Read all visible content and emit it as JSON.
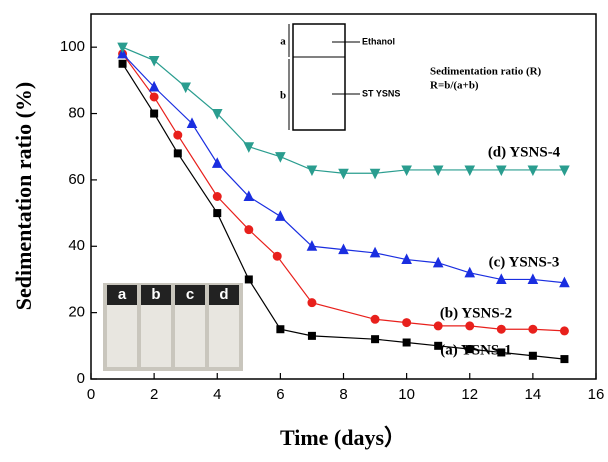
{
  "chart_data": {
    "type": "line",
    "x_label": "Time (days）",
    "y_label": "Sedimentation ratio (%)",
    "xlim": [
      0,
      16
    ],
    "xticks": [
      0,
      2,
      4,
      6,
      8,
      10,
      12,
      14,
      16
    ],
    "ylim": [
      0,
      110
    ],
    "yticks": [
      0,
      20,
      40,
      60,
      80,
      100
    ],
    "series": [
      {
        "name": "(a) YSNS-1",
        "color": "#000000",
        "marker": "square",
        "x": [
          1,
          2,
          2.75,
          4,
          5,
          6,
          7,
          9,
          10,
          11,
          12,
          13,
          14,
          15
        ],
        "values": [
          95,
          80,
          68,
          50,
          30,
          15,
          13,
          12,
          11,
          10,
          9,
          8,
          7,
          6
        ]
      },
      {
        "name": "(b) YSNS-2",
        "color": "#e8201c",
        "marker": "circle",
        "x": [
          1,
          2,
          2.75,
          4,
          5,
          5.9,
          7,
          9,
          10,
          11,
          12,
          13,
          14,
          15
        ],
        "values": [
          98,
          85,
          73.5,
          55,
          45,
          37,
          23,
          18,
          17,
          16,
          16,
          15,
          15,
          14.5
        ]
      },
      {
        "name": "(c) YSNS-3",
        "color": "#1a2ee0",
        "marker": "triangle-up",
        "x": [
          1,
          2,
          3.2,
          4,
          5,
          6,
          7,
          8,
          9,
          10,
          11,
          12,
          13,
          14,
          15
        ],
        "values": [
          98,
          88,
          77,
          65,
          55,
          49,
          40,
          39,
          38,
          36,
          35,
          32,
          30,
          30,
          29
        ]
      },
      {
        "name": "(d) YSNS-4",
        "color": "#2a9d8f",
        "marker": "triangle-down",
        "x": [
          1,
          2,
          3,
          4,
          5,
          6,
          7,
          8,
          9,
          10,
          11,
          12,
          13,
          14,
          15
        ],
        "values": [
          100,
          96,
          88,
          80,
          70,
          67,
          63,
          62,
          62,
          63,
          63,
          63,
          63,
          63,
          63
        ]
      }
    ],
    "schematic": {
      "upper": "a",
      "lower": "b",
      "upper_label": "Ethanol",
      "lower_label": "ST YSNS",
      "title": "Sedimentation ratio (R)",
      "formula": "R=b/(a+b)"
    },
    "photo_labels": [
      "a",
      "b",
      "c",
      "d"
    ]
  }
}
